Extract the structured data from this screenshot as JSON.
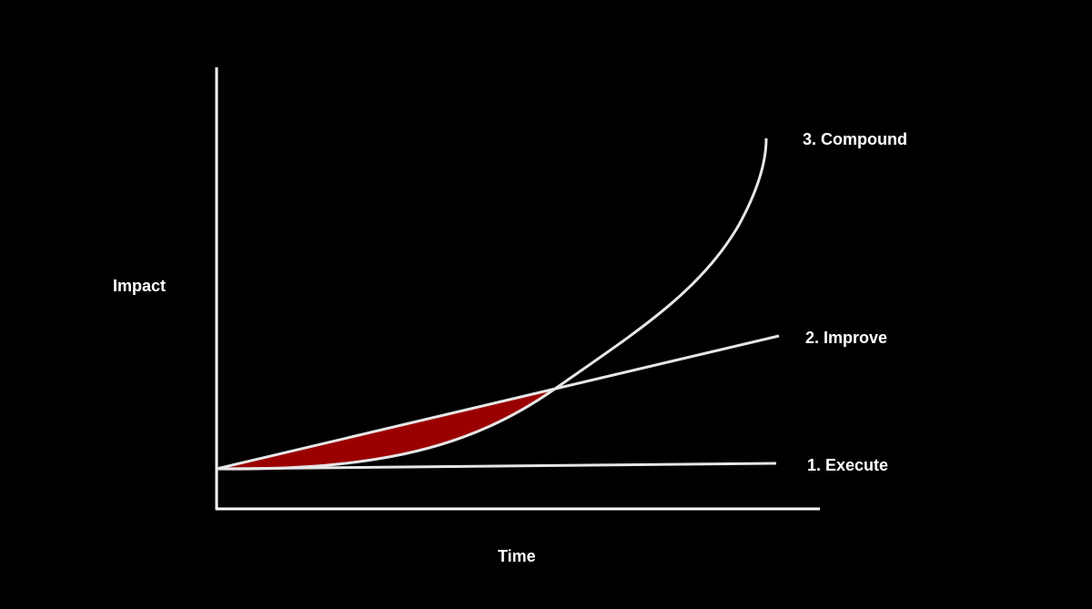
{
  "chart_data": {
    "type": "line",
    "xlabel": "Time",
    "ylabel": "Impact",
    "grid": false,
    "legend": "none",
    "colors": {
      "background": "#000000",
      "axes": "#ffffff",
      "lines": "#e6e6e6",
      "highlight_fill": "#9b0000"
    },
    "series": [
      {
        "name": "1. Execute"
      },
      {
        "name": "2. Improve"
      },
      {
        "name": "3. Compound"
      }
    ]
  }
}
